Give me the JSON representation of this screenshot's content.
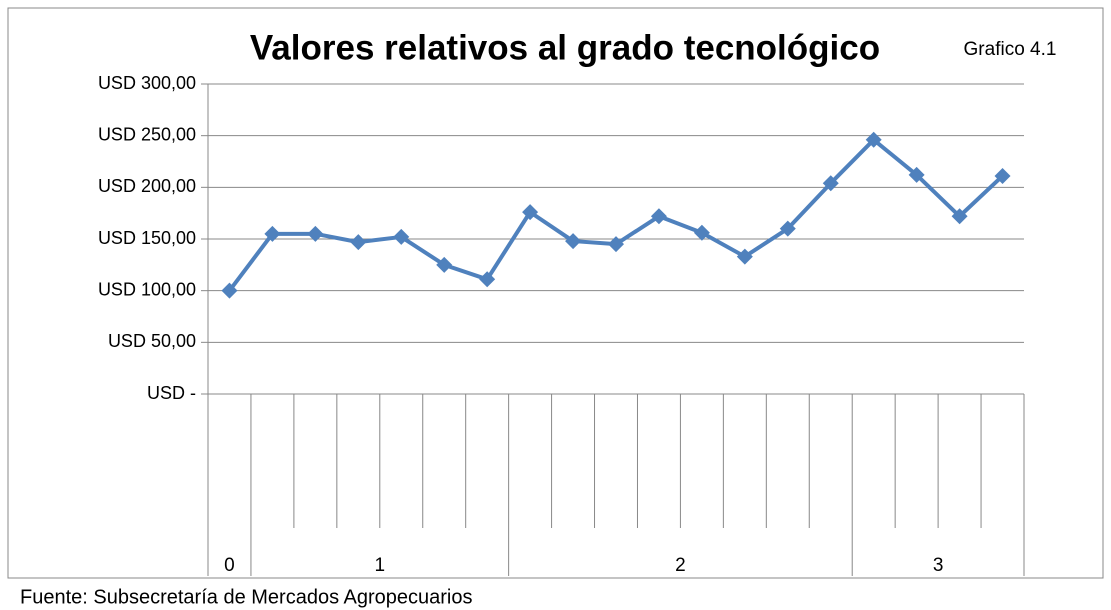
{
  "chart_data": {
    "type": "line",
    "title": "Valores relativos al grado tecnológico",
    "subtitle": "Grafico 4.1",
    "source": "Fuente: Subsecretaría de Mercados Agropecuarios",
    "categories": [
      null,
      null,
      null,
      null,
      null,
      null,
      null,
      null,
      null,
      null,
      null,
      null,
      null,
      null,
      null,
      null,
      null,
      null,
      null
    ],
    "groups": [
      {
        "label": "0",
        "count": 1
      },
      {
        "label": "1",
        "count": 6
      },
      {
        "label": "2",
        "count": 8
      },
      {
        "label": "3",
        "count": 4
      }
    ],
    "series": [
      {
        "name": null,
        "color": "#4f81bd",
        "values": [
          100,
          155,
          155,
          147,
          152,
          125,
          111,
          176,
          148,
          145,
          172,
          156,
          133,
          160,
          204,
          246,
          212,
          172,
          211
        ]
      }
    ],
    "ylim": [
      0,
      300
    ],
    "yticks": [
      {
        "value": 0,
        "label": "USD -"
      },
      {
        "value": 50,
        "label": "USD 50,00"
      },
      {
        "value": 100,
        "label": "USD 100,00"
      },
      {
        "value": 150,
        "label": "USD 150,00"
      },
      {
        "value": 200,
        "label": "USD 200,00"
      },
      {
        "value": 250,
        "label": "USD 250,00"
      },
      {
        "value": 300,
        "label": "USD 300,00"
      }
    ],
    "grid": true
  }
}
